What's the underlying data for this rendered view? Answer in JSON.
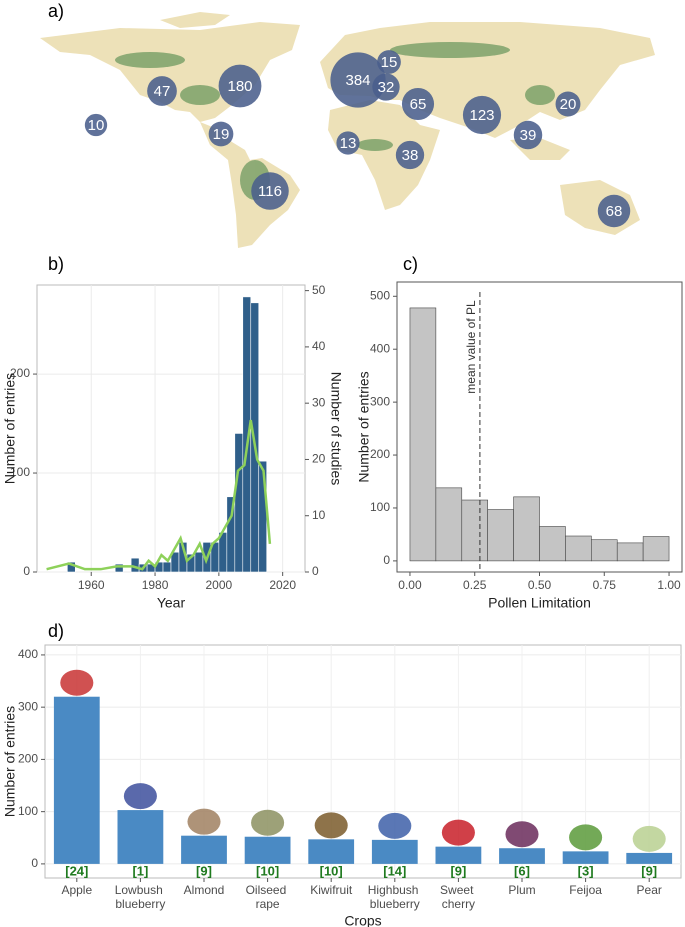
{
  "chart_data": [
    {
      "type": "bubble_map",
      "panel": "a)",
      "color": "#4a5f8c",
      "values": [
        10,
        47,
        180,
        19,
        116,
        384,
        15,
        32,
        65,
        13,
        38,
        123,
        39,
        20,
        68
      ]
    },
    {
      "type": "histogram",
      "panel": "b)",
      "xlabel": "Year",
      "ylabel": "Number of entries",
      "y2label": "Number of studies",
      "bins": [
        1950,
        1952.5,
        1955,
        1957.5,
        1960,
        1962.5,
        1965,
        1967.5,
        1970,
        1972.5,
        1975,
        1977.5,
        1980,
        1982.5,
        1985,
        1987.5,
        1990,
        1992.5,
        1995,
        1997.5,
        2000,
        2002.5,
        2005,
        2007.5,
        2010,
        2012.5,
        2015
      ],
      "values": [
        0,
        10,
        0,
        0,
        0,
        0,
        0,
        8,
        0,
        14,
        8,
        8,
        10,
        10,
        20,
        30,
        18,
        20,
        30,
        30,
        40,
        76,
        140,
        278,
        272,
        112
      ],
      "color": "#2f5f8a",
      "line": {
        "axis": "y2",
        "color": "#8ed15a",
        "x": [
          1946,
          1953,
          1958,
          1963,
          1968,
          1973,
          1976,
          1978,
          1980,
          1982,
          1984,
          1986,
          1988,
          1990,
          1992,
          1994,
          1996,
          1998,
          2000,
          2002,
          2004,
          2006,
          2008,
          2010,
          2012,
          2014,
          2016
        ],
        "values": [
          0.5,
          1.5,
          0.5,
          0.5,
          1,
          1,
          0.5,
          2,
          1,
          3,
          2,
          4,
          6,
          2,
          3,
          5,
          2,
          5,
          6,
          8,
          10,
          18,
          19,
          27,
          20,
          18,
          5
        ]
      },
      "xlim": [
        1943,
        2027
      ],
      "xticks": [
        1960,
        1980,
        2000,
        2020
      ],
      "ylim": [
        0,
        290
      ],
      "yticks": [
        0,
        100,
        200
      ],
      "y2lim": [
        0,
        51
      ],
      "y2ticks": [
        0,
        10,
        20,
        30,
        40,
        50
      ],
      "grid": true
    },
    {
      "type": "histogram",
      "panel": "c)",
      "xlabel": "Pollen Limitation",
      "ylabel": "Number of entries",
      "bins": [
        0,
        0.1,
        0.2,
        0.3,
        0.4,
        0.5,
        0.6,
        0.7,
        0.8,
        0.9,
        1.0
      ],
      "values": [
        478,
        138,
        115,
        97,
        121,
        65,
        47,
        40,
        34,
        46
      ],
      "color": "#c4c4c4",
      "mean": {
        "text": "mean value of PL",
        "x": 0.27
      },
      "xlim": [
        -0.05,
        1.05
      ],
      "xticks": [
        {
          "value": 0,
          "label": "0.00"
        },
        {
          "value": 0.25,
          "label": "0.25"
        },
        {
          "value": 0.5,
          "label": "0.50"
        },
        {
          "value": 0.75,
          "label": "0.75"
        },
        {
          "value": 1,
          "label": "1.00"
        }
      ],
      "ylim": [
        -21,
        527
      ],
      "yticks": [
        0,
        100,
        200,
        300,
        400,
        500
      ],
      "grid": false
    },
    {
      "type": "bar",
      "panel": "d)",
      "xlabel": "Crops",
      "ylabel": "Number of entries",
      "categories": [
        "Apple",
        "Lowbush blueberry",
        "Almond",
        "Oilseed rape",
        "Kiwifruit",
        "Highbush blueberry",
        "Sweet cherry",
        "Plum",
        "Feijoa",
        "Pear"
      ],
      "values": [
        320,
        103,
        54,
        52,
        47,
        46,
        33,
        30,
        24,
        21
      ],
      "study_labels": [
        "[24]",
        "[1]",
        "[9]",
        "[10]",
        "[10]",
        "[14]",
        "[9]",
        "[6]",
        "[3]",
        "[9]"
      ],
      "label_color": "#1f7a1f",
      "color": "#4a8ac4",
      "ylim": [
        -27,
        419
      ],
      "yticks": [
        0,
        100,
        200,
        300,
        400
      ],
      "grid": true
    }
  ]
}
